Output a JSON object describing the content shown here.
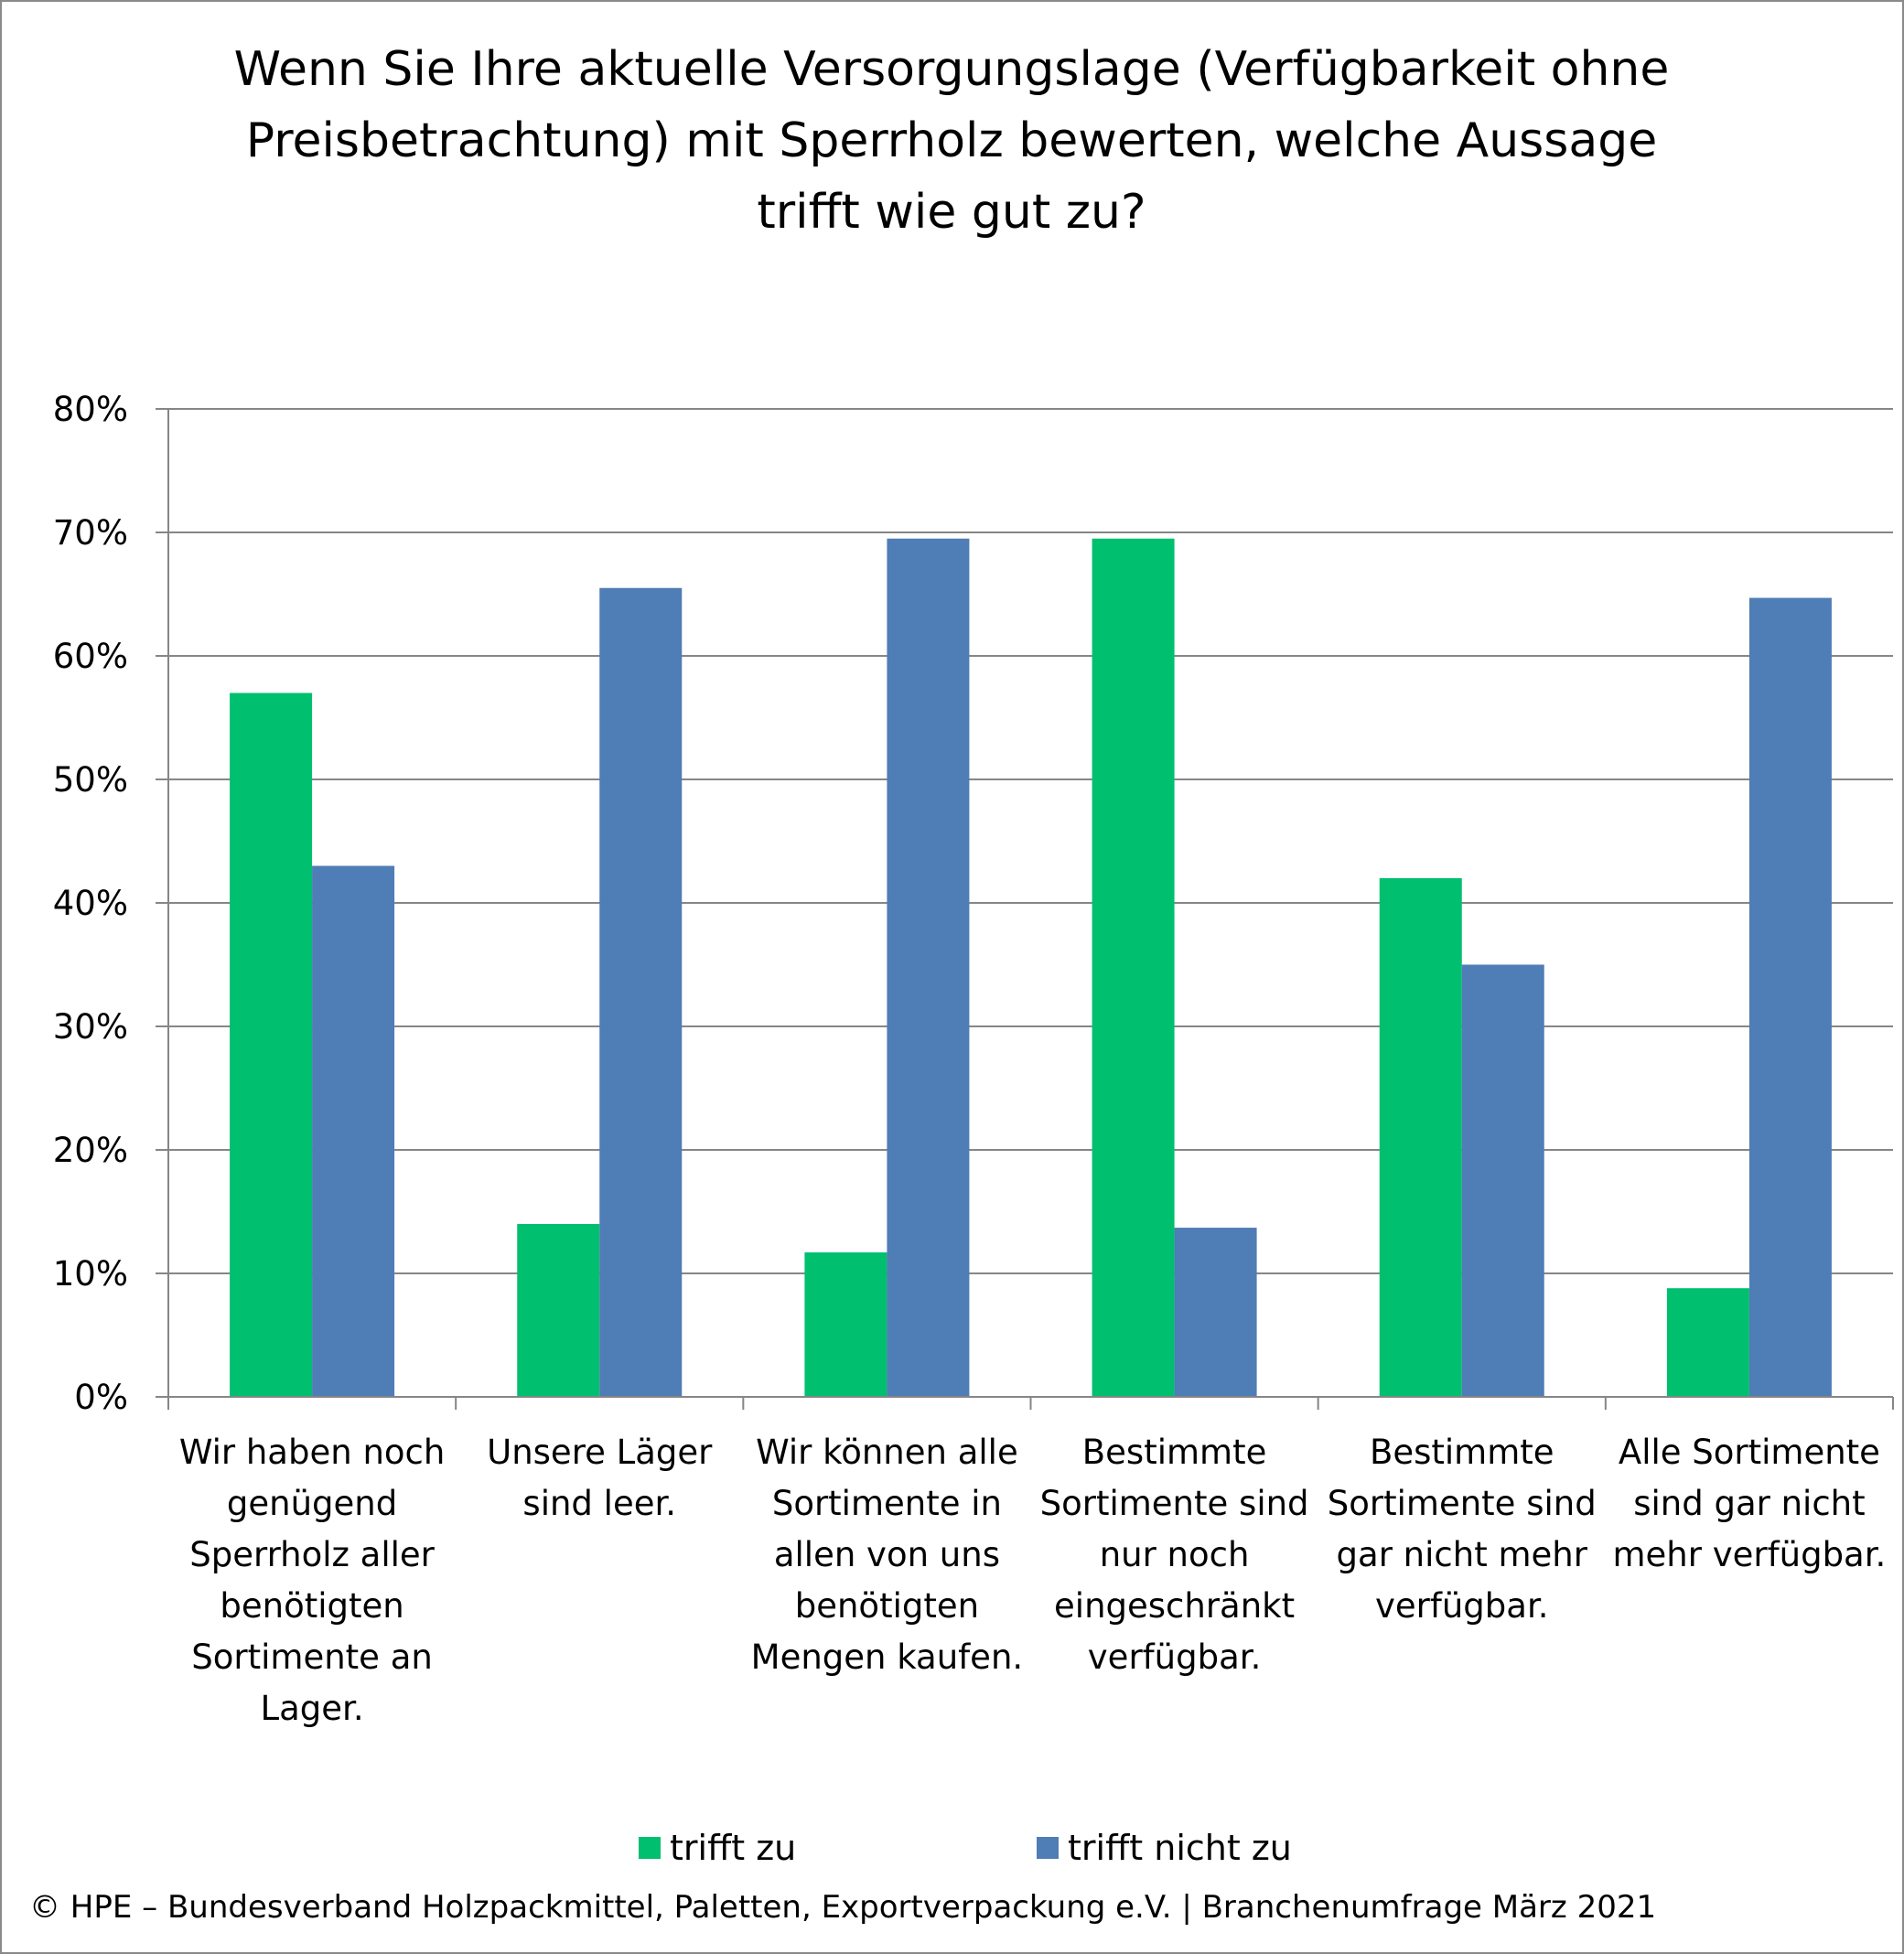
{
  "chart_data": {
    "type": "bar",
    "title": "Wenn Sie Ihre aktuelle Versorgungslage (Verfügbarkeit ohne Preisbetrachtung) mit Sperrholz bewerten, welche Aussage trifft wie gut zu?",
    "title_lines": [
      "Wenn Sie Ihre aktuelle Versorgungslage (Verfügbarkeit ohne",
      "Preisbetrachtung) mit Sperrholz bewerten, welche Aussage",
      "trifft wie gut zu?"
    ],
    "categories": [
      "Wir haben noch genügend Sperrholz aller benötigten Sortimente an Lager.",
      "Unsere Läger sind leer.",
      "Wir können alle Sortimente in allen von uns benötigten Mengen kaufen.",
      "Bestimmte Sortimente sind nur noch eingeschränkt verfügbar.",
      "Bestimmte Sortimente sind gar nicht mehr verfügbar.",
      "Alle Sortimente sind gar nicht mehr verfügbar."
    ],
    "category_lines": [
      [
        "Wir haben noch",
        "genügend",
        "Sperrholz aller",
        "benötigten",
        "Sortimente an",
        "Lager."
      ],
      [
        "Unsere Läger",
        "sind leer."
      ],
      [
        "Wir können alle",
        "Sortimente in",
        "allen von uns",
        "benötigten",
        "Mengen kaufen."
      ],
      [
        "Bestimmte",
        "Sortimente sind",
        "nur noch",
        "eingeschränkt",
        "verfügbar."
      ],
      [
        "Bestimmte",
        "Sortimente sind",
        "gar nicht mehr",
        "verfügbar."
      ],
      [
        "Alle Sortimente",
        "sind gar nicht",
        "mehr verfügbar."
      ]
    ],
    "series": [
      {
        "name": "trifft zu",
        "color": "#00BF6F",
        "values": [
          57,
          14,
          11.7,
          69.5,
          42,
          8.8
        ]
      },
      {
        "name": "trifft nicht zu",
        "color": "#4F7DB5",
        "values": [
          43,
          65.5,
          69.5,
          13.7,
          35,
          64.7
        ]
      }
    ],
    "ylim": [
      0,
      80
    ],
    "yticks": [
      "0%",
      "10%",
      "20%",
      "30%",
      "40%",
      "50%",
      "60%",
      "70%",
      "80%"
    ],
    "grid": true,
    "legend_position": "bottom",
    "xlabel": "",
    "ylabel": ""
  },
  "footer": "© HPE – Bundesverband Holzpackmittel, Paletten, Exportverpackung e.V.  | Branchenumfrage März 2021"
}
